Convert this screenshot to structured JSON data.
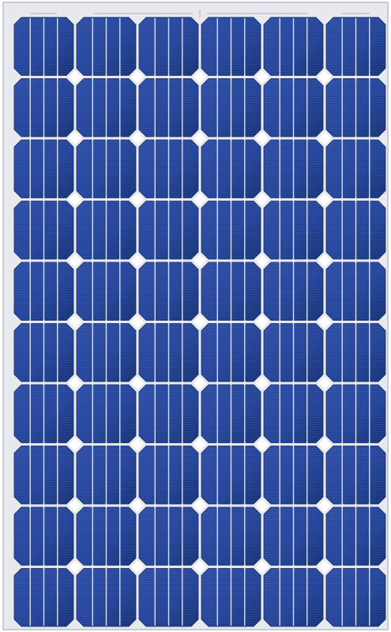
{
  "panel": {
    "rows": 10,
    "cols": 6,
    "colors": {
      "background": "#ffffff",
      "frame": "#c7cbd6",
      "frame_inner": "#e7e9ef",
      "cell_light": "#2f4fa8",
      "cell_mid": "#24459a",
      "cell_dark": "#173477",
      "cell_edge": "#122a63",
      "busbar": "#d9e0f0",
      "ribbon": "#eef2fb",
      "interconnect": "#c9ced9"
    }
  }
}
